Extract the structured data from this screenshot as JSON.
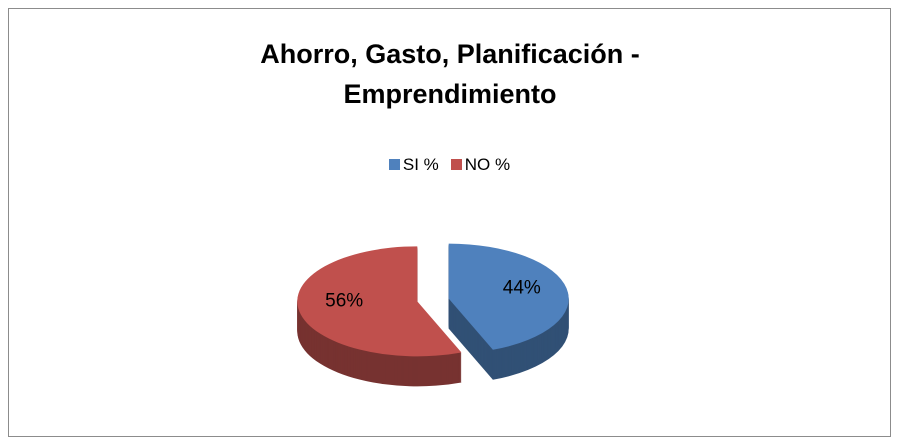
{
  "chart_data": {
    "type": "pie",
    "title": "Ahorro, Gasto, Planificación - Emprendimiento",
    "categories": [
      "SI %",
      "NO %"
    ],
    "values": [
      44,
      56
    ],
    "value_labels": [
      "44%",
      "56%"
    ],
    "colors": [
      "#4f81bd",
      "#c0504d"
    ],
    "legend": "top"
  }
}
